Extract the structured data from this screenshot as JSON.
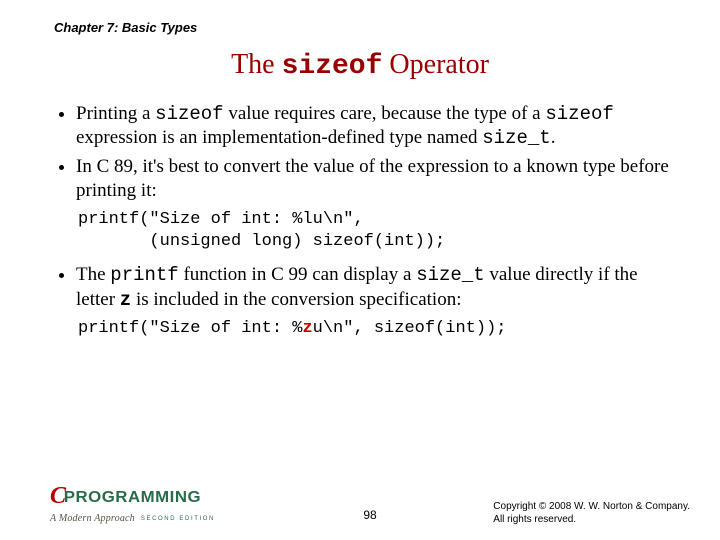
{
  "chapter": "Chapter 7: Basic Types",
  "title": {
    "pre": "The ",
    "mono": "sizeof",
    "post": " Operator"
  },
  "bullets": [
    {
      "parts": [
        {
          "t": "Printing a "
        },
        {
          "t": "sizeof",
          "mono": true
        },
        {
          "t": " value requires care, because the type of a "
        },
        {
          "t": "sizeof",
          "mono": true
        },
        {
          "t": " expression is an implementation-defined type named "
        },
        {
          "t": "size_t",
          "mono": true
        },
        {
          "t": "."
        }
      ]
    },
    {
      "parts": [
        {
          "t": "In C 89, it's best to convert the value of the expression to a known type before printing it:"
        }
      ]
    }
  ],
  "code1_l1": "printf(\"Size of int: %lu\\n\",",
  "code1_l2": "       (unsigned long) sizeof(int));",
  "bullets2": [
    {
      "parts": [
        {
          "t": "The "
        },
        {
          "t": "printf",
          "mono": true
        },
        {
          "t": " function in C 99 can display a "
        },
        {
          "t": "size_t",
          "mono": true
        },
        {
          "t": " value directly if the letter "
        },
        {
          "t": "z",
          "mono": true,
          "bold": true
        },
        {
          "t": " is included in the conversion specification:"
        }
      ]
    }
  ],
  "code2_pre": "printf(\"Size of int: %",
  "code2_z": "z",
  "code2_post": "u\\n\", sizeof(int));",
  "footer": {
    "logo_c": "C",
    "logo_text": "PROGRAMMING",
    "logo_sub": "A Modern Approach",
    "logo_ed": "SECOND EDITION",
    "page": "98",
    "copy_l1": "Copyright © 2008 W. W. Norton & Company.",
    "copy_l2": "All rights reserved."
  },
  "style": {
    "bg": "#ffffff",
    "title_color": "#990000",
    "body_fontsize": 19,
    "title_fontsize": 28,
    "code_fontsize": 17,
    "highlight_color": "#cc0000"
  }
}
